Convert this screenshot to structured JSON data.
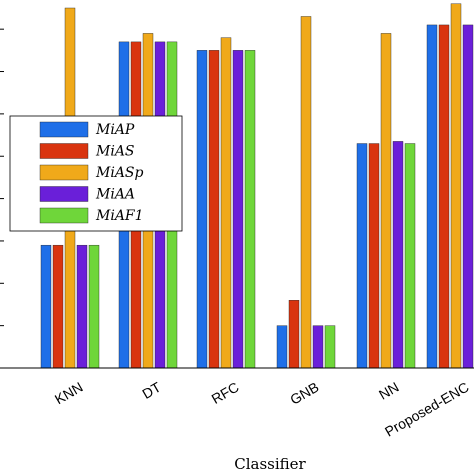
{
  "chart_data": {
    "type": "bar",
    "xlabel": "Classifier",
    "categories": [
      "KNN",
      "DT",
      "RFC",
      "GNB",
      "NN",
      "Proposed-ENC"
    ],
    "series": [
      {
        "name": "MiAP",
        "color": "#1f6fe8",
        "values": [
          0.29,
          0.77,
          0.75,
          0.1,
          0.53,
          0.81
        ]
      },
      {
        "name": "MiAS",
        "color": "#d9340f",
        "values": [
          0.29,
          0.77,
          0.75,
          0.16,
          0.53,
          0.81
        ]
      },
      {
        "name": "MiASp",
        "color": "#f0a91a",
        "values": [
          0.85,
          0.79,
          0.78,
          0.83,
          0.79,
          0.86
        ]
      },
      {
        "name": "MiAA",
        "color": "#6a1fd9",
        "values": [
          0.29,
          0.77,
          0.75,
          0.1,
          0.535,
          0.81
        ]
      },
      {
        "name": "MiAF1",
        "color": "#6fd63a",
        "values": [
          0.29,
          0.77,
          0.75,
          0.1,
          0.53,
          0.81
        ]
      }
    ],
    "ylim": [
      0,
      0.85
    ],
    "grid": false,
    "legend_position": "left-middle"
  }
}
